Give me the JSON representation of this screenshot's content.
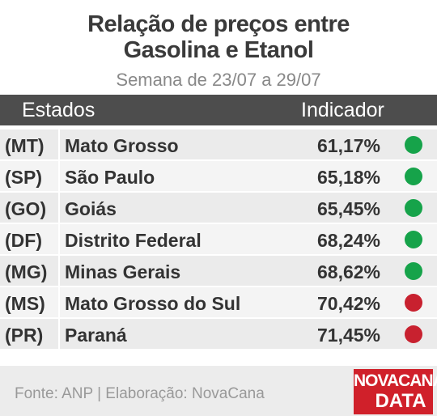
{
  "header": {
    "title_lines": [
      "Relação de preços entre",
      "Gasolina e Etanol"
    ],
    "subtitle": "Semana de 23/07 a 29/07"
  },
  "table": {
    "columns": [
      "Estados",
      "Indicador"
    ],
    "rows": [
      {
        "code": "(MT)",
        "state": "Mato Grosso",
        "value": "61,17%",
        "color": "#16a34a"
      },
      {
        "code": "(SP)",
        "state": "São Paulo",
        "value": "65,18%",
        "color": "#16a34a"
      },
      {
        "code": "(GO)",
        "state": "Goiás",
        "value": "65,45%",
        "color": "#16a34a"
      },
      {
        "code": "(DF)",
        "state": "Distrito Federal",
        "value": "68,24%",
        "color": "#16a34a"
      },
      {
        "code": "(MG)",
        "state": "Minas Gerais",
        "value": "68,62%",
        "color": "#16a34a"
      },
      {
        "code": "(MS)",
        "state": "Mato Grosso do Sul",
        "value": "70,42%",
        "color": "#c8212f"
      },
      {
        "code": "(PR)",
        "state": "Paraná",
        "value": "71,45%",
        "color": "#c8212f"
      }
    ]
  },
  "footer": {
    "source": "Fonte: ANP | Elaboração: NovaCana",
    "logo_top": "NOVACANA",
    "logo_bottom": "DATA"
  }
}
